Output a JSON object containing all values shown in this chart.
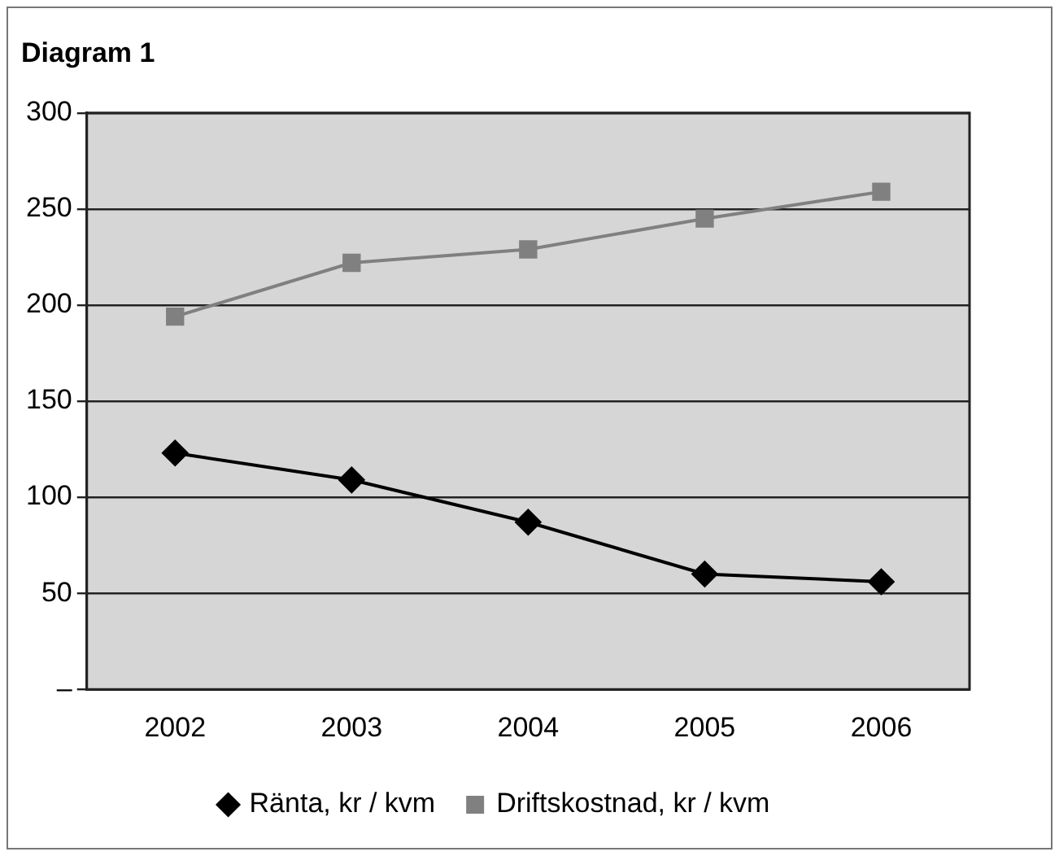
{
  "chart_data": {
    "type": "line",
    "title": "Diagram 1",
    "categories": [
      "2002",
      "2003",
      "2004",
      "2005",
      "2006"
    ],
    "series": [
      {
        "name": "Ränta, kr / kvm",
        "color": "#000000",
        "marker": "diamond",
        "values": [
          123,
          109,
          87,
          60,
          56
        ]
      },
      {
        "name": "Driftskostnad, kr / kvm",
        "color": "#808080",
        "marker": "square",
        "values": [
          194,
          222,
          229,
          245,
          259
        ]
      }
    ],
    "ylim": [
      0,
      300
    ],
    "yticks": [
      {
        "value": 0,
        "label": "–"
      },
      50,
      100,
      150,
      200,
      250,
      300
    ],
    "grid": "y",
    "legend": "bottom",
    "line_style": "solid"
  }
}
